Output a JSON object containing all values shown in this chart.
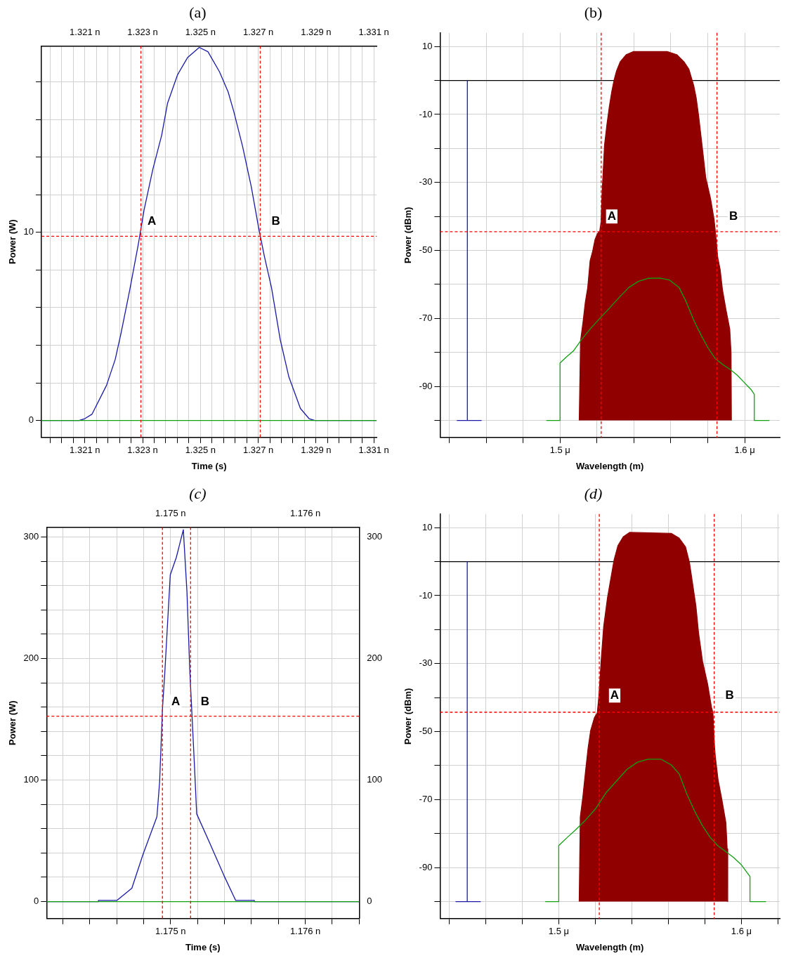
{
  "chart_data": [
    {
      "type": "line",
      "title": "(a)",
      "xlabel": "Time (s)",
      "ylabel": "Power (W)",
      "grid": true,
      "xlim": [
        1.3195,
        1.3311
      ],
      "xticks": [
        {
          "value": 1.3198,
          "label": null
        },
        {
          "value": 1.3202,
          "label": null
        },
        {
          "value": 1.3206,
          "label": null
        },
        {
          "value": 1.321,
          "label": "1.321 n"
        },
        {
          "value": 1.3214,
          "label": null
        },
        {
          "value": 1.3218,
          "label": null
        },
        {
          "value": 1.3222,
          "label": null
        },
        {
          "value": 1.3226,
          "label": null
        },
        {
          "value": 1.323,
          "label": "1.323 n"
        },
        {
          "value": 1.3234,
          "label": null
        },
        {
          "value": 1.3238,
          "label": null
        },
        {
          "value": 1.3242,
          "label": null
        },
        {
          "value": 1.3246,
          "label": null
        },
        {
          "value": 1.325,
          "label": "1.325 n"
        },
        {
          "value": 1.3254,
          "label": null
        },
        {
          "value": 1.3258,
          "label": null
        },
        {
          "value": 1.3262,
          "label": null
        },
        {
          "value": 1.3266,
          "label": null
        },
        {
          "value": 1.327,
          "label": "1.327 n"
        },
        {
          "value": 1.3274,
          "label": null
        },
        {
          "value": 1.3278,
          "label": null
        },
        {
          "value": 1.3282,
          "label": null
        },
        {
          "value": 1.3286,
          "label": null
        },
        {
          "value": 1.329,
          "label": "1.329 n"
        },
        {
          "value": 1.3294,
          "label": null
        },
        {
          "value": 1.3298,
          "label": null
        },
        {
          "value": 1.3302,
          "label": null
        },
        {
          "value": 1.3306,
          "label": null
        },
        {
          "value": 1.331,
          "label": "1.331 n"
        }
      ],
      "x2lim": [
        1.3195,
        1.3311
      ],
      "x2ticks": [
        {
          "value": 1.321,
          "label": "1.321 n"
        },
        {
          "value": 1.323,
          "label": "1.323 n"
        },
        {
          "value": 1.325,
          "label": "1.325 n"
        },
        {
          "value": 1.327,
          "label": "1.327 n"
        },
        {
          "value": 1.329,
          "label": "1.329 n"
        },
        {
          "value": 1.331,
          "label": "1.331 n"
        }
      ],
      "ylim": [
        -0.9,
        19.9
      ],
      "yticks": [
        0,
        {
          "value": 2,
          "label": null
        },
        {
          "value": 4,
          "label": null
        },
        {
          "value": 6,
          "label": null
        },
        {
          "value": 8,
          "label": null
        },
        10,
        {
          "value": 12,
          "label": null
        },
        {
          "value": 14,
          "label": null
        },
        {
          "value": 16,
          "label": null
        },
        {
          "value": 18,
          "label": null
        }
      ],
      "series": [
        {
          "color": "#1a1aa6",
          "x": [
            1.3195,
            1.3208,
            1.321,
            1.32125,
            1.32175,
            1.32205,
            1.32225,
            1.32255,
            1.32285,
            1.32305,
            1.32335,
            1.32366,
            1.32386,
            1.32421,
            1.32456,
            1.32496,
            1.32526,
            1.32566,
            1.32596,
            1.32616,
            1.32646,
            1.32676,
            1.32701,
            1.32721,
            1.32746,
            1.32776,
            1.32806,
            1.32846,
            1.32876,
            1.32896,
            1.3311
          ],
          "values": [
            0,
            0,
            0.1,
            0.34,
            1.87,
            3.24,
            4.62,
            6.91,
            9.36,
            11.19,
            13.33,
            15.17,
            16.85,
            18.38,
            19.3,
            19.83,
            19.6,
            18.53,
            17.46,
            16.39,
            14.56,
            12.42,
            10.28,
            8.75,
            7.06,
            4.31,
            2.32,
            0.64,
            0.1,
            0,
            0
          ]
        },
        {
          "color": "#10a010",
          "x": [
            1.3195,
            1.3311
          ],
          "values": [
            0,
            0
          ]
        }
      ],
      "ref_lines": [
        {
          "axis": "x",
          "value": 1.32294,
          "color": "#ff0000",
          "line_style": "dashed"
        },
        {
          "axis": "x",
          "value": 1.32707,
          "color": "#ff0000",
          "line_style": "dashed"
        },
        {
          "axis": "y",
          "value": 9.79,
          "color": "#ff0000",
          "line_style": "dashed"
        }
      ],
      "annotations": [
        {
          "text": "A",
          "x": 1.32332,
          "y": 10.58
        },
        {
          "text": "B",
          "x": 1.32761,
          "y": 10.58
        }
      ]
    },
    {
      "type": "line",
      "title": "(b)",
      "xlabel": "Wavelength (m)",
      "ylabel": "Power (dBm)",
      "grid": true,
      "xlim": [
        1.435,
        1.619
      ],
      "xticks": [
        {
          "value": 1.44,
          "label": null
        },
        {
          "value": 1.46,
          "label": null
        },
        {
          "value": 1.48,
          "label": null
        },
        {
          "value": 1.5,
          "label": "1.5 μ"
        },
        {
          "value": 1.52,
          "label": null
        },
        {
          "value": 1.54,
          "label": null
        },
        {
          "value": 1.56,
          "label": null
        },
        {
          "value": 1.58,
          "label": null
        },
        {
          "value": 1.6,
          "label": "1.6 μ"
        }
      ],
      "ylim": [
        -105,
        14
      ],
      "yticks": [
        10,
        {
          "value": 0,
          "label": null
        },
        -10,
        {
          "value": -20,
          "label": null
        },
        -30,
        {
          "value": -40,
          "label": null
        },
        -50,
        {
          "value": -60,
          "label": null
        },
        -70,
        {
          "value": -80,
          "label": null
        },
        -90,
        {
          "value": -100,
          "label": null
        }
      ],
      "series": [
        {
          "type": "area",
          "color": "#900000",
          "x": [
            1.5104,
            1.5111,
            1.5124,
            1.5137,
            1.515,
            1.5163,
            1.5176,
            1.5189,
            1.5202,
            1.5215,
            1.5222,
            1.5228,
            1.5241,
            1.5254,
            1.5267,
            1.528,
            1.5293,
            1.5306,
            1.5326,
            1.5359,
            1.5398,
            1.558,
            1.5632,
            1.5671,
            1.5698,
            1.5724,
            1.5737,
            1.575,
            1.5769,
            1.5789,
            1.5815,
            1.5834,
            1.5841,
            1.5854,
            1.5867,
            1.588,
            1.59,
            1.5919,
            1.5926,
            1.5928
          ],
          "values": [
            -100,
            -76.6,
            -71.3,
            -65.2,
            -60.9,
            -53,
            -50.4,
            -46.9,
            -45.1,
            -44.3,
            -41.7,
            -32.9,
            -19,
            -12.9,
            -7.7,
            -3.3,
            0.2,
            2.8,
            5.5,
            7.6,
            8.5,
            8.5,
            7.6,
            5.5,
            3.3,
            -1.5,
            -5,
            -10.2,
            -19,
            -28.6,
            -34.7,
            -40.8,
            -44.3,
            -52.1,
            -55.6,
            -61.7,
            -67.8,
            -73.1,
            -80.1,
            -100
          ]
        },
        {
          "color": "#10a010",
          "x": [
            1.4926,
            1.5,
            1.5,
            1.5033,
            1.5072,
            1.5111,
            1.5163,
            1.5215,
            1.5267,
            1.5319,
            1.5372,
            1.5424,
            1.5476,
            1.5541,
            1.5593,
            1.5645,
            1.5684,
            1.5724,
            1.5763,
            1.5802,
            1.5841,
            1.588,
            1.5919,
            1.5958,
            1.5997,
            1.6036,
            1.6052,
            1.6052,
            1.6134
          ],
          "values": [
            -100,
            -100,
            -83.1,
            -81.4,
            -79.6,
            -76.6,
            -73.1,
            -70,
            -67,
            -63.9,
            -60.9,
            -59.1,
            -58.2,
            -58.1,
            -58.7,
            -60.9,
            -65.2,
            -70.5,
            -74.8,
            -78.7,
            -81.8,
            -83.5,
            -84.9,
            -86.6,
            -88.8,
            -91,
            -92.3,
            -100,
            -100
          ]
        },
        {
          "color": "#1a1aa6",
          "x": [
            1.4441,
            1.4498,
            1.4498,
            1.4498,
            1.4575
          ],
          "values": [
            -100,
            -100,
            0,
            -100,
            -100
          ]
        }
      ],
      "ref_lines": [
        {
          "axis": "y",
          "value": 0,
          "color": "#000000",
          "line_style": "solid"
        },
        {
          "axis": "x",
          "value": 1.5223,
          "color": "#ff0000",
          "line_style": "dashed"
        },
        {
          "axis": "x",
          "value": 1.585,
          "color": "#ff0000",
          "line_style": "dashed"
        },
        {
          "axis": "y",
          "value": -44.5,
          "color": "#ff0000",
          "line_style": "dashed"
        }
      ],
      "annotations": [
        {
          "text": "A",
          "x": 1.528,
          "y": -40
        },
        {
          "text": "B",
          "x": 1.5939,
          "y": -40
        }
      ]
    },
    {
      "type": "line",
      "title": "(c)",
      "xlabel": "Time (s)",
      "ylabel": "Power (W)",
      "grid": true,
      "xlim": [
        1.17408,
        1.1764
      ],
      "xticks": [
        {
          "value": 1.1742,
          "label": null
        },
        {
          "value": 1.1744,
          "label": null
        },
        {
          "value": 1.1746,
          "label": null
        },
        {
          "value": 1.1748,
          "label": null
        },
        {
          "value": 1.175,
          "label": "1.175 n"
        },
        {
          "value": 1.1752,
          "label": null
        },
        {
          "value": 1.1754,
          "label": null
        },
        {
          "value": 1.1756,
          "label": null
        },
        {
          "value": 1.1758,
          "label": null
        },
        {
          "value": 1.176,
          "label": "1.176 n"
        },
        {
          "value": 1.1762,
          "label": null
        },
        {
          "value": 1.1764,
          "label": null
        }
      ],
      "x2lim": [
        1.17408,
        1.1764
      ],
      "x2ticks": [
        {
          "value": 1.175,
          "label": "1.175 n"
        },
        {
          "value": 1.176,
          "label": "1.176 n"
        }
      ],
      "ylim": [
        -14,
        308
      ],
      "yticks": [
        0,
        {
          "value": 20,
          "label": null
        },
        {
          "value": 40,
          "label": null
        },
        {
          "value": 60,
          "label": null
        },
        {
          "value": 80,
          "label": null
        },
        100,
        {
          "value": 120,
          "label": null
        },
        {
          "value": 140,
          "label": null
        },
        {
          "value": 160,
          "label": null
        },
        {
          "value": 180,
          "label": null
        },
        200,
        {
          "value": 220,
          "label": null
        },
        {
          "value": 240,
          "label": null
        },
        {
          "value": 260,
          "label": null
        },
        {
          "value": 280,
          "label": null
        },
        300
      ],
      "y2lim": [
        -14,
        308
      ],
      "y2ticks": [
        0,
        100,
        200,
        300
      ],
      "series": [
        {
          "color": "#1a1aa6",
          "x": [
            1.17408,
            1.174465,
            1.174465,
            1.174603,
            1.174713,
            1.174795,
            1.174899,
            1.174919,
            1.17494,
            1.174957,
            1.174998,
            1.175043,
            1.175095,
            1.175122,
            1.175143,
            1.175157,
            1.175178,
            1.175194,
            1.175291,
            1.175395,
            1.175483,
            1.175622,
            1.175622,
            1.1764
          ],
          "values": [
            0,
            0,
            1,
            1,
            11,
            38.6,
            69.8,
            98.6,
            158.5,
            187.3,
            268.8,
            283.2,
            306,
            254.4,
            189.7,
            158.5,
            110.6,
            72.2,
            48.2,
            21.8,
            1,
            1,
            0,
            0
          ]
        },
        {
          "color": "#10a010",
          "x": [
            1.17408,
            1.1764
          ],
          "values": [
            0,
            0
          ]
        }
      ],
      "ref_lines": [
        {
          "axis": "x",
          "value": 1.17494,
          "color": "#ff0000",
          "line_style": "dashed"
        },
        {
          "axis": "x",
          "value": 1.175149,
          "color": "#ff0000",
          "line_style": "dashed"
        },
        {
          "axis": "y",
          "value": 152.5,
          "color": "#ff0000",
          "line_style": "dashed"
        }
      ],
      "annotations": [
        {
          "text": "A",
          "x": 1.175039,
          "y": 164.5
        },
        {
          "text": "B",
          "x": 1.175256,
          "y": 164.5
        }
      ]
    },
    {
      "type": "line",
      "title": "(d)",
      "xlabel": "Wavelength (m)",
      "ylabel": "Power (dBm)",
      "grid": true,
      "xlim": [
        1.435,
        1.621
      ],
      "xticks": [
        {
          "value": 1.44,
          "label": null
        },
        {
          "value": 1.46,
          "label": null
        },
        {
          "value": 1.48,
          "label": null
        },
        {
          "value": 1.5,
          "label": "1.5 μ"
        },
        {
          "value": 1.52,
          "label": null
        },
        {
          "value": 1.54,
          "label": null
        },
        {
          "value": 1.56,
          "label": null
        },
        {
          "value": 1.58,
          "label": null
        },
        {
          "value": 1.6,
          "label": "1.6 μ"
        },
        {
          "value": 1.62,
          "label": null
        }
      ],
      "ylim": [
        -105,
        14
      ],
      "yticks": [
        10,
        {
          "value": 0,
          "label": null
        },
        -10,
        {
          "value": -20,
          "label": null
        },
        -30,
        {
          "value": -40,
          "label": null
        },
        -50,
        {
          "value": -60,
          "label": null
        },
        -70,
        {
          "value": -80,
          "label": null
        },
        -90,
        {
          "value": -100,
          "label": null
        }
      ],
      "series": [
        {
          "type": "area",
          "color": "#900000",
          "x": [
            1.5112,
            1.5118,
            1.5132,
            1.5147,
            1.5161,
            1.5175,
            1.5196,
            1.5211,
            1.522,
            1.5232,
            1.5246,
            1.5267,
            1.5289,
            1.5303,
            1.5324,
            1.5353,
            1.5388,
            1.5616,
            1.5659,
            1.5694,
            1.5716,
            1.573,
            1.5751,
            1.5765,
            1.5787,
            1.5815,
            1.5836,
            1.5844,
            1.5851,
            1.5857,
            1.5872,
            1.5893,
            1.5915,
            1.5922,
            1.5925
          ],
          "values": [
            -100,
            -75.1,
            -69.2,
            -61.5,
            -54.7,
            -49.6,
            -45.8,
            -44.5,
            -39.4,
            -29.3,
            -19.1,
            -10.6,
            -3.8,
            0.5,
            4.7,
            7.3,
            8.6,
            8.3,
            6.9,
            4.3,
            -0.4,
            -5.5,
            -13.1,
            -20.8,
            -29.3,
            -36,
            -42.8,
            -44.5,
            -53,
            -57.3,
            -64.1,
            -70,
            -76.8,
            -84.5,
            -100
          ]
        },
        {
          "color": "#10a010",
          "x": [
            1.4926,
            1.5,
            1.5,
            1.5047,
            1.509,
            1.5147,
            1.5203,
            1.526,
            1.5317,
            1.5374,
            1.5431,
            1.5488,
            1.5559,
            1.5616,
            1.5659,
            1.5701,
            1.5744,
            1.5787,
            1.5829,
            1.5872,
            1.5915,
            1.5957,
            1.6,
            1.6047,
            1.6047,
            1.6135
          ],
          "values": [
            -100,
            -100,
            -83.5,
            -81.1,
            -79,
            -76,
            -72.6,
            -67.9,
            -64.5,
            -61.1,
            -59,
            -58.1,
            -58.1,
            -59.8,
            -62.4,
            -68.3,
            -73.4,
            -77.7,
            -81.1,
            -83.6,
            -85.3,
            -87,
            -89.2,
            -92.6,
            -100,
            -100
          ]
        },
        {
          "color": "#1a1aa6",
          "x": [
            1.4435,
            1.4499,
            1.4499,
            1.4499,
            1.4573
          ],
          "values": [
            -100,
            -100,
            0,
            -100,
            -100
          ]
        }
      ],
      "ref_lines": [
        {
          "axis": "y",
          "value": 0,
          "color": "#000000",
          "line_style": "solid"
        },
        {
          "axis": "x",
          "value": 1.5222,
          "color": "#ff0000",
          "line_style": "dashed"
        },
        {
          "axis": "x",
          "value": 1.5851,
          "color": "#ff0000",
          "line_style": "dashed"
        },
        {
          "axis": "y",
          "value": -44.3,
          "color": "#ff0000",
          "line_style": "dashed"
        }
      ],
      "annotations": [
        {
          "text": "A",
          "x": 1.5306,
          "y": -39.4
        },
        {
          "text": "B",
          "x": 1.5936,
          "y": -39.4
        }
      ]
    }
  ]
}
